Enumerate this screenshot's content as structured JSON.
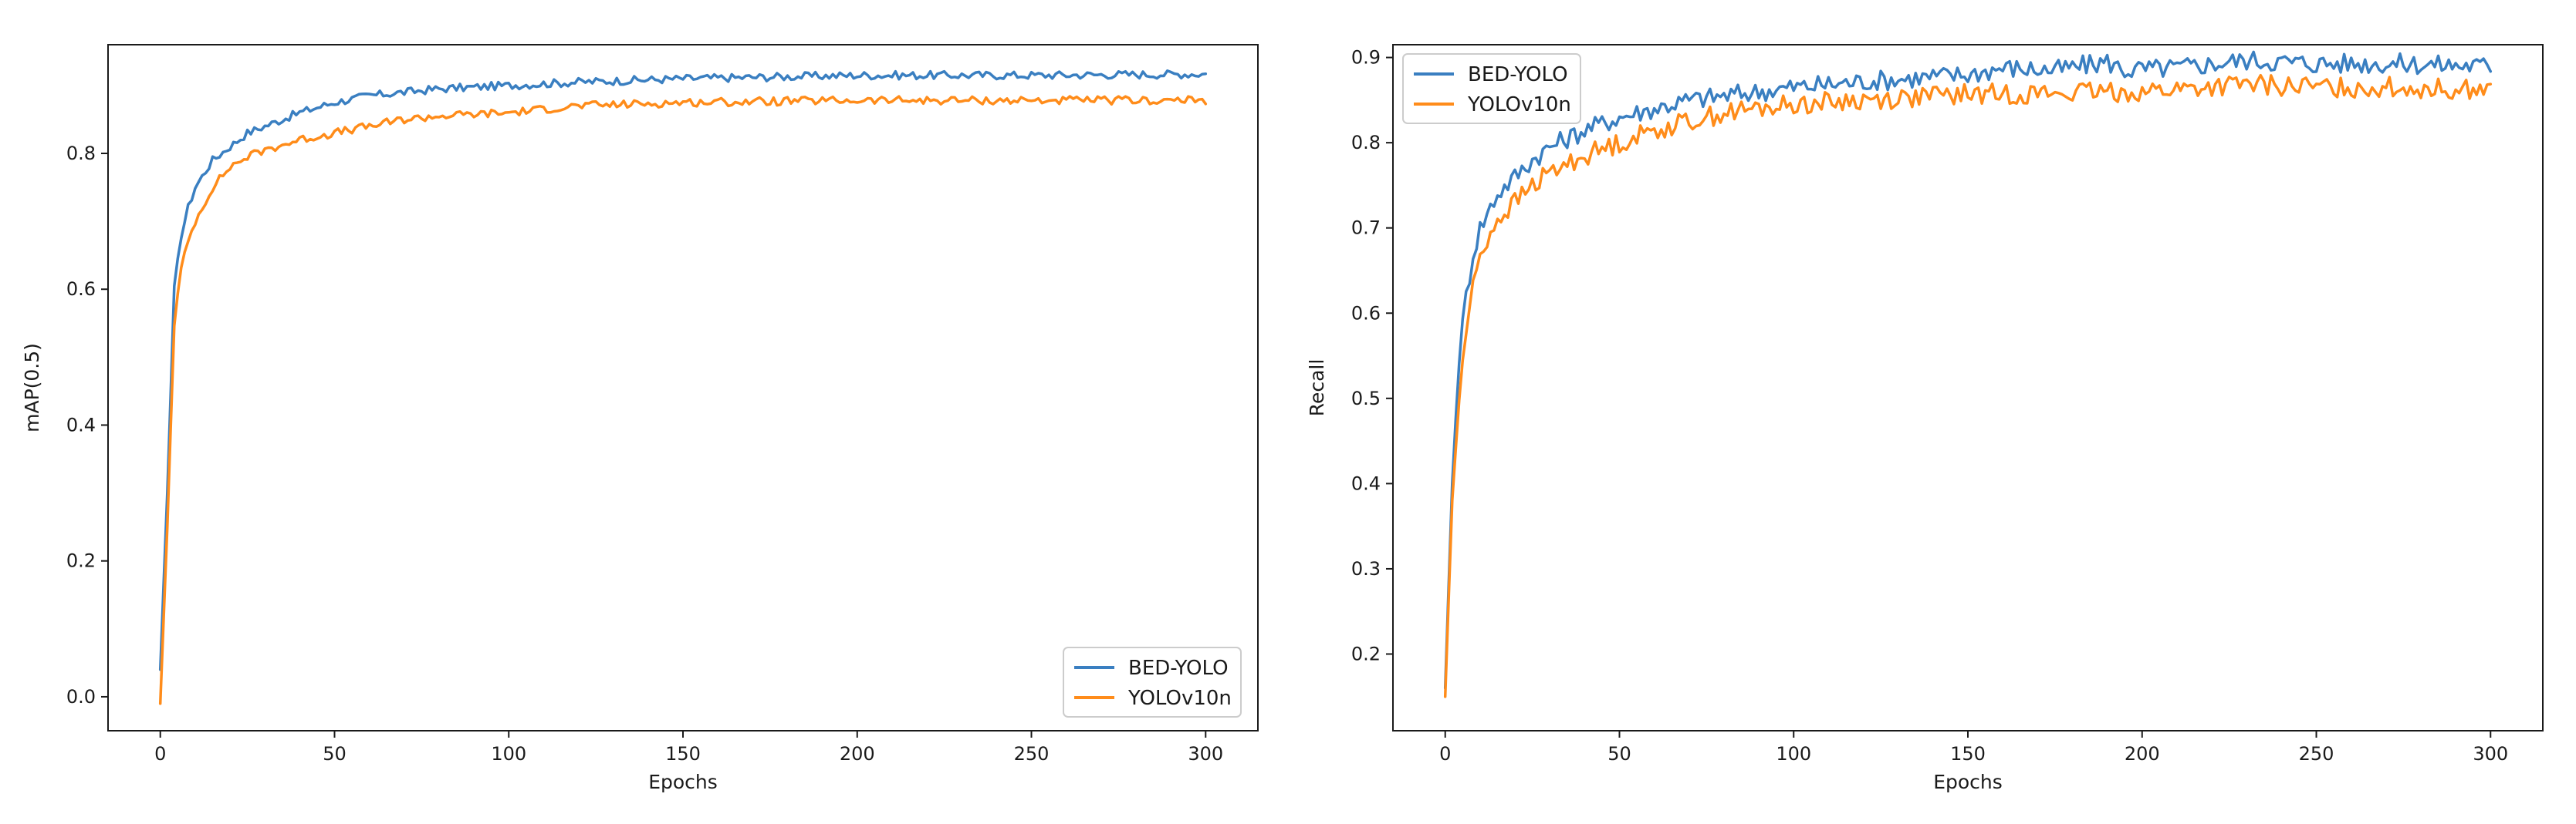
{
  "colors": {
    "bed_yolo": "#3a7fc1",
    "yolov10n": "#ff8c1a"
  },
  "chart_data": [
    {
      "type": "line",
      "title": "",
      "xlabel": "Epochs",
      "ylabel": "mAP(0.5)",
      "xlim": [
        -15,
        315
      ],
      "ylim": [
        -0.05,
        0.96
      ],
      "xticks": [
        0,
        50,
        100,
        150,
        200,
        250,
        300
      ],
      "yticks": [
        0.0,
        0.2,
        0.4,
        0.6,
        0.8
      ],
      "ytick_labels": [
        "0.0",
        "0.2",
        "0.4",
        "0.6",
        "0.8"
      ],
      "legend_position": "bottom-right",
      "grid": false,
      "series": [
        {
          "name": "BED-YOLO",
          "color": "#3a7fc1",
          "points": [
            [
              0,
              0.04
            ],
            [
              2,
              0.3
            ],
            [
              4,
              0.6
            ],
            [
              6,
              0.68
            ],
            [
              8,
              0.72
            ],
            [
              10,
              0.75
            ],
            [
              15,
              0.79
            ],
            [
              20,
              0.81
            ],
            [
              25,
              0.83
            ],
            [
              30,
              0.84
            ],
            [
              40,
              0.86
            ],
            [
              50,
              0.875
            ],
            [
              60,
              0.885
            ],
            [
              70,
              0.89
            ],
            [
              80,
              0.895
            ],
            [
              100,
              0.9
            ],
            [
              120,
              0.905
            ],
            [
              150,
              0.91
            ],
            [
              200,
              0.915
            ],
            [
              250,
              0.915
            ],
            [
              300,
              0.917
            ]
          ],
          "noise": 0.006
        },
        {
          "name": "YOLOv10n",
          "color": "#ff8c1a",
          "points": [
            [
              0,
              -0.01
            ],
            [
              2,
              0.25
            ],
            [
              4,
              0.55
            ],
            [
              6,
              0.63
            ],
            [
              8,
              0.67
            ],
            [
              10,
              0.7
            ],
            [
              15,
              0.75
            ],
            [
              20,
              0.78
            ],
            [
              25,
              0.795
            ],
            [
              30,
              0.805
            ],
            [
              40,
              0.82
            ],
            [
              50,
              0.83
            ],
            [
              60,
              0.84
            ],
            [
              70,
              0.85
            ],
            [
              80,
              0.855
            ],
            [
              100,
              0.86
            ],
            [
              120,
              0.87
            ],
            [
              150,
              0.875
            ],
            [
              200,
              0.878
            ],
            [
              250,
              0.878
            ],
            [
              300,
              0.878
            ]
          ],
          "noise": 0.006
        }
      ]
    },
    {
      "type": "line",
      "title": "",
      "xlabel": "Epochs",
      "ylabel": "Recall",
      "xlim": [
        -15,
        315
      ],
      "ylim": [
        0.11,
        0.915
      ],
      "xticks": [
        0,
        50,
        100,
        150,
        200,
        250,
        300
      ],
      "yticks": [
        0.2,
        0.3,
        0.4,
        0.5,
        0.6,
        0.7,
        0.8,
        0.9
      ],
      "ytick_labels": [
        "0.2",
        "0.3",
        "0.4",
        "0.5",
        "0.6",
        "0.7",
        "0.8",
        "0.9"
      ],
      "legend_position": "top-left",
      "grid": false,
      "series": [
        {
          "name": "BED-YOLO",
          "color": "#3a7fc1",
          "points": [
            [
              0,
              0.16
            ],
            [
              2,
              0.4
            ],
            [
              4,
              0.55
            ],
            [
              6,
              0.62
            ],
            [
              8,
              0.67
            ],
            [
              10,
              0.7
            ],
            [
              15,
              0.74
            ],
            [
              20,
              0.76
            ],
            [
              25,
              0.78
            ],
            [
              30,
              0.795
            ],
            [
              40,
              0.815
            ],
            [
              50,
              0.83
            ],
            [
              60,
              0.84
            ],
            [
              70,
              0.85
            ],
            [
              80,
              0.855
            ],
            [
              100,
              0.865
            ],
            [
              120,
              0.872
            ],
            [
              150,
              0.88
            ],
            [
              160,
              0.888
            ],
            [
              175,
              0.885
            ],
            [
              190,
              0.895
            ],
            [
              195,
              0.885
            ],
            [
              210,
              0.888
            ],
            [
              230,
              0.897
            ],
            [
              250,
              0.893
            ],
            [
              270,
              0.893
            ],
            [
              300,
              0.89
            ]
          ],
          "noise": 0.012
        },
        {
          "name": "YOLOv10n",
          "color": "#ff8c1a",
          "points": [
            [
              0,
              0.15
            ],
            [
              2,
              0.38
            ],
            [
              4,
              0.5
            ],
            [
              6,
              0.58
            ],
            [
              8,
              0.63
            ],
            [
              10,
              0.67
            ],
            [
              15,
              0.71
            ],
            [
              20,
              0.73
            ],
            [
              25,
              0.75
            ],
            [
              30,
              0.765
            ],
            [
              40,
              0.785
            ],
            [
              50,
              0.8
            ],
            [
              60,
              0.815
            ],
            [
              70,
              0.825
            ],
            [
              80,
              0.835
            ],
            [
              100,
              0.845
            ],
            [
              120,
              0.85
            ],
            [
              150,
              0.857
            ],
            [
              175,
              0.858
            ],
            [
              200,
              0.86
            ],
            [
              230,
              0.868
            ],
            [
              250,
              0.865
            ],
            [
              270,
              0.865
            ],
            [
              300,
              0.862
            ]
          ],
          "noise": 0.012
        }
      ]
    }
  ]
}
